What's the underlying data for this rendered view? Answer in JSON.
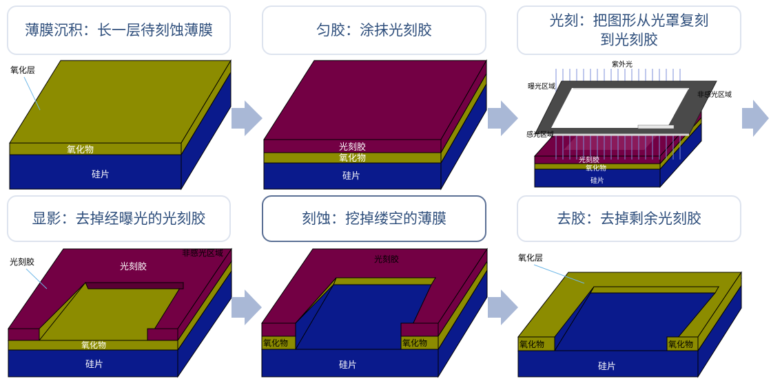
{
  "steps": [
    {
      "caption": "薄膜沉积：长一层待刻蚀薄膜"
    },
    {
      "caption": "匀胶：涂抹光刻胶"
    },
    {
      "caption": "光刻：把图形从光罩复刻到光刻胶"
    },
    {
      "caption": "显影：去掉经曝光的光刻胶"
    },
    {
      "caption": "刻蚀：挖掉缕空的薄膜"
    },
    {
      "caption": "去胶：去掉剩余光刻胶"
    }
  ],
  "labels": {
    "oxide_layer": "氧化层",
    "oxide": "氧化物",
    "silicon": "硅片",
    "photoresist": "光刻胶",
    "uv_light": "紫外光",
    "exposed_region": "曝光区域",
    "unexposed_region": "非感光区域",
    "sensitized_region": "感光区域"
  },
  "colors": {
    "silicon": "#0a1a8c",
    "oxide": "#8c8c00",
    "photoresist": "#730044",
    "arrow": "#a9b8d6",
    "caption_text": "#2f4f7c"
  }
}
